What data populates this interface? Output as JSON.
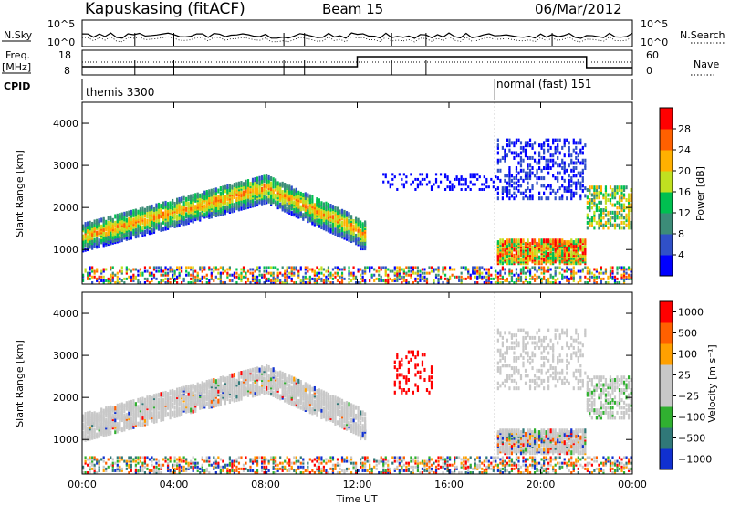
{
  "header": {
    "station": "Kapuskasing (fitACF)",
    "beam": "Beam 15",
    "date": "06/Mar/2012"
  },
  "panels": {
    "nsky_label": "N.Sky",
    "nsky_ticks": [
      "10^5",
      "10^0"
    ],
    "nsearch_label": "N.Search",
    "nsearch_ticks": [
      "10^5",
      "10^0"
    ],
    "freq_label": "Freq.",
    "freq_unit": "[MHz]",
    "freq_ticks": [
      "18",
      "8"
    ],
    "nave_label": "Nave",
    "nave_ticks": [
      "60",
      "0"
    ],
    "cpid_label": "CPID",
    "cpid_modes": [
      {
        "name": "themis 3300",
        "start_hour": 0
      },
      {
        "name": "normal (fast) 151",
        "start_hour": 18
      }
    ]
  },
  "chart_data": [
    {
      "type": "heatmap",
      "title": "",
      "xlabel": "Time UT",
      "ylabel": "Slant Range [km]",
      "x_tick_labels": [
        "00:00",
        "04:00",
        "08:00",
        "12:00",
        "16:00",
        "20:00",
        "00:00"
      ],
      "x_tick_hours": [
        0,
        4,
        8,
        12,
        16,
        20,
        24
      ],
      "xlim": [
        0,
        24
      ],
      "ylim": [
        180,
        4500
      ],
      "y_ticks": [
        1000,
        2000,
        3000,
        4000
      ],
      "colorbar": {
        "label": "Power [dB]",
        "ticks": [
          4,
          8,
          12,
          16,
          20,
          24,
          28
        ],
        "range": [
          0,
          32
        ],
        "colors": [
          "#0000ff",
          "#3050c8",
          "#3c8c78",
          "#00c050",
          "#c0e020",
          "#ffb000",
          "#ff6000",
          "#ff0000"
        ]
      },
      "features": [
        {
          "description": "backscatter band",
          "hours": [
            0,
            12
          ],
          "range_km": [
            1250,
            2600
          ]
        },
        {
          "description": "ground scatter",
          "hours": [
            18,
            22
          ],
          "range_km": [
            700,
            1250
          ]
        }
      ]
    },
    {
      "type": "heatmap",
      "title": "",
      "xlabel": "Time UT",
      "ylabel": "Slant Range [km]",
      "x_tick_labels": [
        "00:00",
        "04:00",
        "08:00",
        "12:00",
        "16:00",
        "20:00",
        "00:00"
      ],
      "x_tick_hours": [
        0,
        4,
        8,
        12,
        16,
        20,
        24
      ],
      "xlim": [
        0,
        24
      ],
      "ylim": [
        180,
        4500
      ],
      "y_ticks": [
        1000,
        2000,
        3000,
        4000
      ],
      "colorbar": {
        "label": "Velocity [m s⁻¹]",
        "ticks": [
          "1000",
          "500",
          "100",
          "25",
          "−25",
          "−100",
          "−500",
          "−1000"
        ],
        "colors": [
          "#1030d0",
          "#307878",
          "#30b030",
          "#c8c8c8",
          "#c8c8c8",
          "#ffa000",
          "#ff6000",
          "#ff0000"
        ]
      }
    }
  ]
}
